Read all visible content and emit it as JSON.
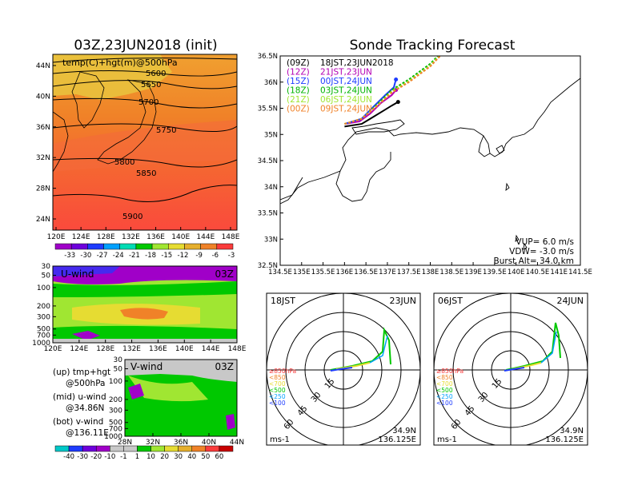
{
  "left": {
    "title": "03Z,23JUN2018 (init)",
    "map": {
      "label": "temp(C)+hgt(m)@500hPa",
      "x_ticks": [
        "120E",
        "124E",
        "128E",
        "132E",
        "136E",
        "140E",
        "144E",
        "148E"
      ],
      "y_ticks": [
        "24N",
        "28N",
        "32N",
        "36N",
        "40N",
        "44N"
      ],
      "contours": [
        {
          "label": "5600",
          "hgt": 5600
        },
        {
          "label": "5650",
          "hgt": 5650
        },
        {
          "label": "5700",
          "hgt": 5700
        },
        {
          "label": "5750",
          "hgt": 5750
        },
        {
          "label": "5800",
          "hgt": 5800
        },
        {
          "label": "5850",
          "hgt": 5850
        },
        {
          "label": "5900",
          "hgt": 5900
        }
      ],
      "colorbar_labels": [
        "-33",
        "-30",
        "-27",
        "-24",
        "-21",
        "-18",
        "-15",
        "-12",
        "-9",
        "-6",
        "-3"
      ],
      "colors": [
        "#a000c8",
        "#6e00dc",
        "#1e3cff",
        "#00a0ff",
        "#00dcb4",
        "#00c800",
        "#a0e632",
        "#e6dc32",
        "#e6af2d",
        "#f08228",
        "#fa3c3c"
      ]
    },
    "uwind": {
      "label": "U-wind",
      "time": "03Z",
      "y_ticks": [
        "30",
        "50",
        "100",
        "200",
        "300",
        "500",
        "700",
        "1000"
      ],
      "x_ticks": [
        "120E",
        "124E",
        "128E",
        "132E",
        "136E",
        "140E",
        "144E",
        "148E"
      ]
    },
    "vwind": {
      "label": "V-wind",
      "time": "03Z",
      "y_ticks": [
        "30",
        "50",
        "100",
        "200",
        "300",
        "500",
        "700",
        "1000"
      ],
      "x_ticks": [
        "28N",
        "32N",
        "36N",
        "40N",
        "44N"
      ]
    },
    "notes": [
      "(up) tmp+hgt",
      "@500hPa",
      "(mid) u-wind",
      "@34.86N",
      "(bot) v-wind",
      "@136.11E"
    ],
    "wind_colorbar_labels": [
      "-40",
      "-30",
      "-20",
      "-10",
      "-1",
      "1",
      "10",
      "20",
      "30",
      "40",
      "50",
      "60"
    ],
    "wind_colors": [
      "#00c8c8",
      "#1e3cff",
      "#6e00dc",
      "#a000c8",
      "#c8c8c8",
      "#c8c8c8",
      "#00c800",
      "#a0e632",
      "#e6dc32",
      "#e6af2d",
      "#f08228",
      "#fa3c3c",
      "#c80000"
    ]
  },
  "right": {
    "title": "Sonde Tracking Forecast",
    "legend": [
      {
        "code": "(09Z)",
        "text": "18JST,23JUN2018",
        "color": "#000000"
      },
      {
        "code": "(12Z)",
        "text": "21JST,23JUN",
        "color": "#b400b4"
      },
      {
        "code": "(15Z)",
        "text": "00JST,24JUN",
        "color": "#1e3cff"
      },
      {
        "code": "(18Z)",
        "text": "03JST,24JUN",
        "color": "#00b400"
      },
      {
        "code": "(21Z)",
        "text": "06JST,24JUN",
        "color": "#a0e632"
      },
      {
        "code": "(00Z)",
        "text": "09JST,24JUN",
        "color": "#f08228"
      }
    ],
    "params": [
      "VUP= 6.0 m/s",
      "VDW= -3.0 m/s",
      "Burst Alt= 34.0 km"
    ],
    "x_ticks": [
      "134.5E",
      "135E",
      "135.5E",
      "136E",
      "136.5E",
      "137E",
      "137.5E",
      "138E",
      "138.5E",
      "139E",
      "139.5E",
      "140E",
      "140.5E",
      "141E",
      "141.5E"
    ],
    "y_ticks": [
      "32.5N",
      "33N",
      "33.5N",
      "34N",
      "34.5N",
      "35N",
      "35.5N",
      "36N",
      "36.5N"
    ],
    "chart_data": {
      "type": "line",
      "xlim": [
        134.5,
        141.5
      ],
      "ylim": [
        32.5,
        36.5
      ],
      "series": [
        {
          "name": "(09Z) 18JST,23JUN2018",
          "color": "#000000",
          "x": [
            136.0,
            136.4,
            136.6,
            136.9,
            137.1,
            137.25
          ],
          "y": [
            35.15,
            35.2,
            35.3,
            35.45,
            35.55,
            35.62
          ]
        },
        {
          "name": "(12Z) 21JST,23JUN",
          "color": "#b400b4",
          "x": [
            136.0,
            136.35,
            136.6,
            136.85,
            137.1,
            137.2
          ],
          "y": [
            35.2,
            35.25,
            35.4,
            35.6,
            35.75,
            35.85
          ]
        },
        {
          "name": "(15Z) 00JST,24JUN",
          "color": "#1e3cff",
          "x": [
            136.0,
            136.4,
            136.7,
            136.95,
            137.15,
            137.2
          ],
          "y": [
            35.2,
            35.3,
            35.55,
            35.75,
            35.9,
            36.05
          ]
        },
        {
          "name": "(18Z) 03JST,24JUN",
          "color": "#00b400",
          "x": [
            136.0,
            136.4,
            136.8,
            137.1,
            137.5,
            138.0,
            138.3
          ],
          "y": [
            35.2,
            35.3,
            35.6,
            35.85,
            36.05,
            36.35,
            36.6
          ]
        },
        {
          "name": "(21Z) 06JST,24JUN",
          "color": "#a0e632",
          "x": [
            136.0,
            136.4,
            136.8,
            137.1,
            137.5,
            138.0,
            138.3
          ],
          "y": [
            35.2,
            35.3,
            35.58,
            35.82,
            36.02,
            36.32,
            36.58
          ]
        },
        {
          "name": "(00Z) 09JST,24JUN",
          "color": "#f08228",
          "x": [
            136.0,
            136.4,
            136.8,
            137.1,
            137.5,
            138.0,
            138.3
          ],
          "y": [
            35.2,
            35.3,
            35.57,
            35.8,
            36.0,
            36.3,
            36.56
          ]
        }
      ]
    },
    "hodographs": [
      {
        "label_left": "18JST",
        "label_right": "23JUN",
        "lat": "34.9N",
        "lon": "136.125E",
        "unit": "ms-1",
        "rings": [
          "15",
          "30",
          "45",
          "60"
        ]
      },
      {
        "label_left": "06JST",
        "label_right": "24JUN",
        "lat": "34.9N",
        "lon": "136.125E",
        "unit": "ms-1",
        "rings": [
          "15",
          "30",
          "45",
          "60"
        ]
      }
    ],
    "pressure_legend": [
      {
        "text": "≥850hPa",
        "color": "#fa3c3c"
      },
      {
        "text": "<850",
        "color": "#f08228"
      },
      {
        "text": "<700",
        "color": "#e6dc32"
      },
      {
        "text": "<500",
        "color": "#00c800"
      },
      {
        "text": "<250",
        "color": "#00a0ff"
      },
      {
        "text": "<100",
        "color": "#1e3cff"
      }
    ]
  }
}
